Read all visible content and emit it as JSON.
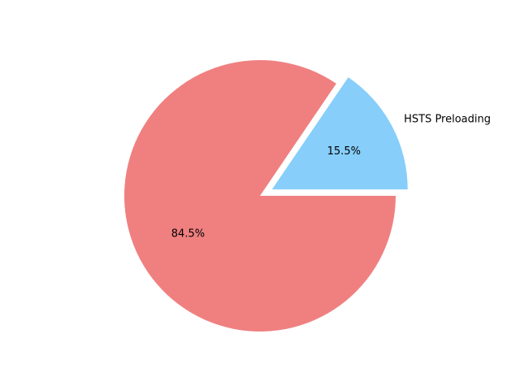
{
  "chart_data": {
    "type": "pie",
    "title": "",
    "slices": [
      {
        "label": "HSTS Preloading",
        "value": 15.5,
        "pct_text": "15.5%",
        "color": "#87CEFA",
        "exploded": true
      },
      {
        "label": "",
        "value": 84.5,
        "pct_text": "84.5%",
        "color": "#F08080",
        "exploded": false
      }
    ],
    "start_angle_deg": 0,
    "direction": "counterclockwise",
    "legend": "none"
  }
}
